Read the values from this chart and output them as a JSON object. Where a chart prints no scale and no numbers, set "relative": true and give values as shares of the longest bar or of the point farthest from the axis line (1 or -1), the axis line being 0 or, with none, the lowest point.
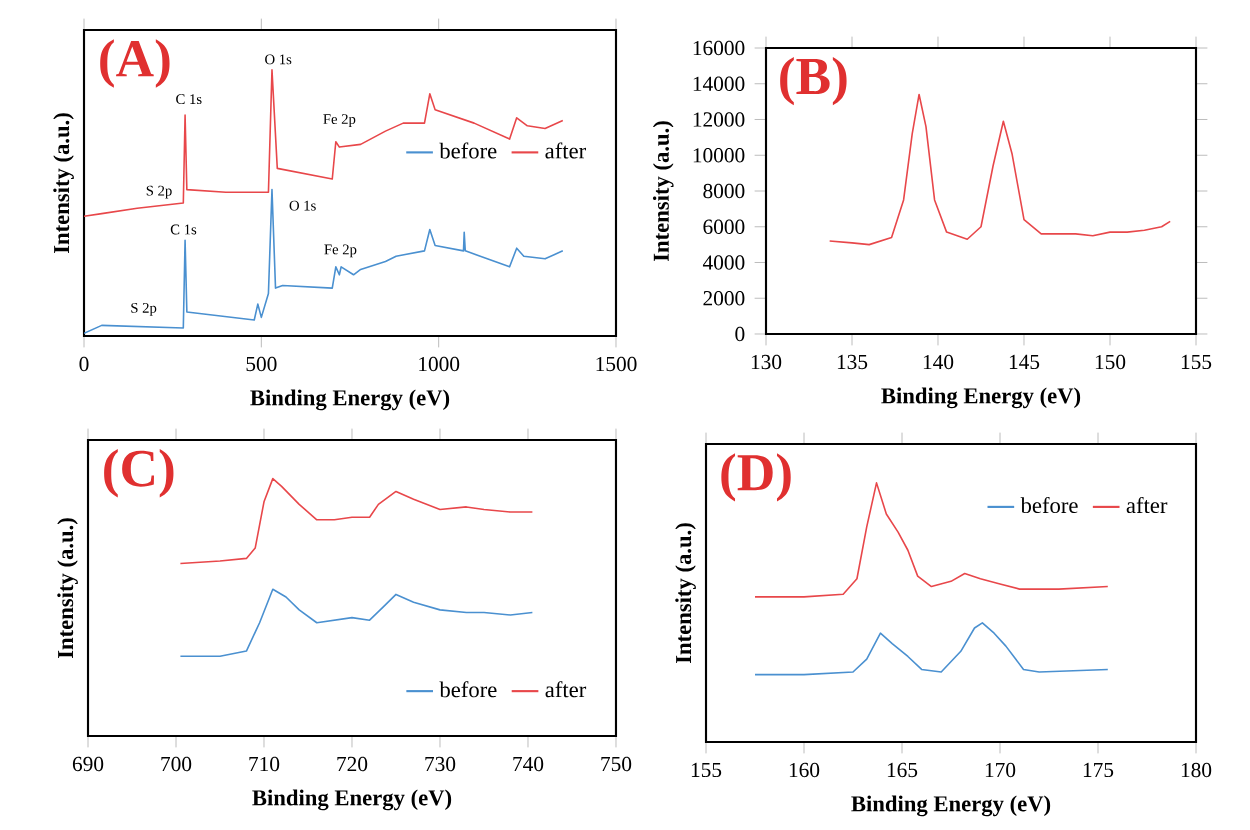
{
  "chart_data": [
    {
      "type": "line",
      "title": "(A)",
      "xlabel": "Binding Energy (eV)",
      "ylabel": "Intensity (a.u.)",
      "relative": true,
      "tick_labels": "x",
      "legend": "right",
      "xlim": [
        0,
        1500
      ],
      "xticks": [
        0,
        500,
        1000,
        1500
      ],
      "annotations": [
        "C 1s",
        "O 1s",
        "Fe 2p",
        "S 2p",
        "C 1s",
        "O 1s",
        "Fe 2p",
        "S 2p"
      ],
      "series": [
        {
          "name": "before",
          "color": "#4a90d0",
          "x": [
            0,
            50,
            280,
            285,
            290,
            480,
            490,
            500,
            520,
            530,
            540,
            560,
            700,
            710,
            720,
            725,
            760,
            780,
            850,
            880,
            960,
            975,
            990,
            1070,
            1072,
            1075,
            1200,
            1220,
            1240,
            1300,
            1350
          ],
          "values": [
            0.01,
            0.04,
            0.03,
            0.36,
            0.09,
            0.06,
            0.12,
            0.07,
            0.16,
            0.55,
            0.18,
            0.19,
            0.18,
            0.26,
            0.23,
            0.26,
            0.23,
            0.25,
            0.28,
            0.3,
            0.32,
            0.4,
            0.34,
            0.32,
            0.39,
            0.32,
            0.26,
            0.33,
            0.3,
            0.29,
            0.32
          ]
        },
        {
          "name": "after",
          "color": "#e8474a",
          "x": [
            0,
            50,
            150,
            280,
            285,
            290,
            400,
            520,
            530,
            545,
            700,
            710,
            720,
            780,
            850,
            900,
            960,
            975,
            990,
            1100,
            1200,
            1220,
            1250,
            1300,
            1350
          ],
          "values": [
            0.45,
            0.46,
            0.48,
            0.5,
            0.83,
            0.55,
            0.54,
            0.54,
            1,
            0.63,
            0.59,
            0.73,
            0.71,
            0.72,
            0.77,
            0.8,
            0.8,
            0.91,
            0.85,
            0.8,
            0.74,
            0.82,
            0.79,
            0.78,
            0.81
          ]
        }
      ]
    },
    {
      "type": "line",
      "title": "(B)",
      "xlabel": "Binding Energy (eV)",
      "ylabel": "Intensity (a.u.)",
      "xlim": [
        130,
        155
      ],
      "xticks": [
        130,
        135,
        140,
        145,
        150,
        155
      ],
      "ylim": [
        0,
        16000
      ],
      "yticks": [
        0,
        2000,
        4000,
        6000,
        8000,
        10000,
        12000,
        14000,
        16000
      ],
      "series": [
        {
          "color": "#e8474a",
          "x": [
            133.7,
            135,
            136,
            137.3,
            138,
            138.5,
            138.9,
            139.3,
            139.8,
            140.5,
            141.7,
            142.5,
            143.2,
            143.8,
            144.3,
            145,
            146,
            147,
            148,
            149,
            150,
            151,
            152,
            153,
            153.5
          ],
          "values": [
            5200,
            5100,
            5000,
            5400,
            7500,
            11200,
            13400,
            11600,
            7500,
            5700,
            5300,
            6000,
            9400,
            11900,
            10100,
            6400,
            5600,
            5600,
            5600,
            5500,
            5700,
            5700,
            5800,
            6000,
            6300
          ]
        }
      ]
    },
    {
      "type": "line",
      "title": "(C)",
      "xlabel": "Binding Energy (eV)",
      "ylabel": "Intensity (a.u.)",
      "relative": true,
      "tick_labels": "x",
      "legend": "bottom right",
      "xlim": [
        690,
        750
      ],
      "xticks": [
        690,
        700,
        710,
        720,
        730,
        740,
        750
      ],
      "series": [
        {
          "name": "before",
          "color": "#4a90d0",
          "x": [
            700.5,
            705,
            708,
            709.5,
            711,
            712.5,
            714,
            716,
            718,
            720,
            722,
            723.5,
            725,
            727,
            730,
            733,
            735,
            738,
            740.5
          ],
          "values": [
            0.31,
            0.31,
            0.33,
            0.44,
            0.57,
            0.54,
            0.49,
            0.44,
            0.45,
            0.46,
            0.45,
            0.5,
            0.55,
            0.52,
            0.49,
            0.48,
            0.48,
            0.47,
            0.48
          ]
        },
        {
          "name": "after",
          "color": "#e8474a",
          "x": [
            700.5,
            705,
            708,
            709,
            710,
            711,
            712,
            714,
            716,
            718,
            720,
            722,
            723,
            725,
            727,
            730,
            733,
            735,
            738,
            740.5
          ],
          "values": [
            0.67,
            0.68,
            0.69,
            0.73,
            0.91,
            1,
            0.97,
            0.9,
            0.84,
            0.84,
            0.85,
            0.85,
            0.9,
            0.95,
            0.92,
            0.88,
            0.89,
            0.88,
            0.87,
            0.87
          ]
        }
      ]
    },
    {
      "type": "line",
      "title": "(D)",
      "xlabel": "Binding Energy (eV)",
      "ylabel": "Intensity (a.u.)",
      "relative": true,
      "tick_labels": "x",
      "legend": "top right",
      "xlim": [
        155,
        180
      ],
      "xticks": [
        155,
        160,
        165,
        170,
        175,
        180
      ],
      "series": [
        {
          "name": "before",
          "color": "#4a90d0",
          "x": [
            157.5,
            160,
            162.5,
            163.2,
            163.9,
            164.5,
            165.3,
            166,
            167,
            168,
            168.7,
            169.1,
            169.7,
            170.3,
            171.2,
            172,
            175.5
          ],
          "values": [
            0.26,
            0.26,
            0.27,
            0.32,
            0.42,
            0.38,
            0.33,
            0.28,
            0.27,
            0.35,
            0.44,
            0.46,
            0.42,
            0.37,
            0.28,
            0.27,
            0.28
          ]
        },
        {
          "name": "after",
          "color": "#e8474a",
          "x": [
            157.5,
            160,
            162,
            162.7,
            163.2,
            163.7,
            164.2,
            164.8,
            165.3,
            165.8,
            166.5,
            167.5,
            168.2,
            169,
            170,
            171,
            173,
            175.5
          ],
          "values": [
            0.56,
            0.56,
            0.57,
            0.63,
            0.83,
            1,
            0.88,
            0.81,
            0.74,
            0.64,
            0.6,
            0.62,
            0.65,
            0.63,
            0.61,
            0.59,
            0.59,
            0.6
          ]
        }
      ]
    }
  ]
}
